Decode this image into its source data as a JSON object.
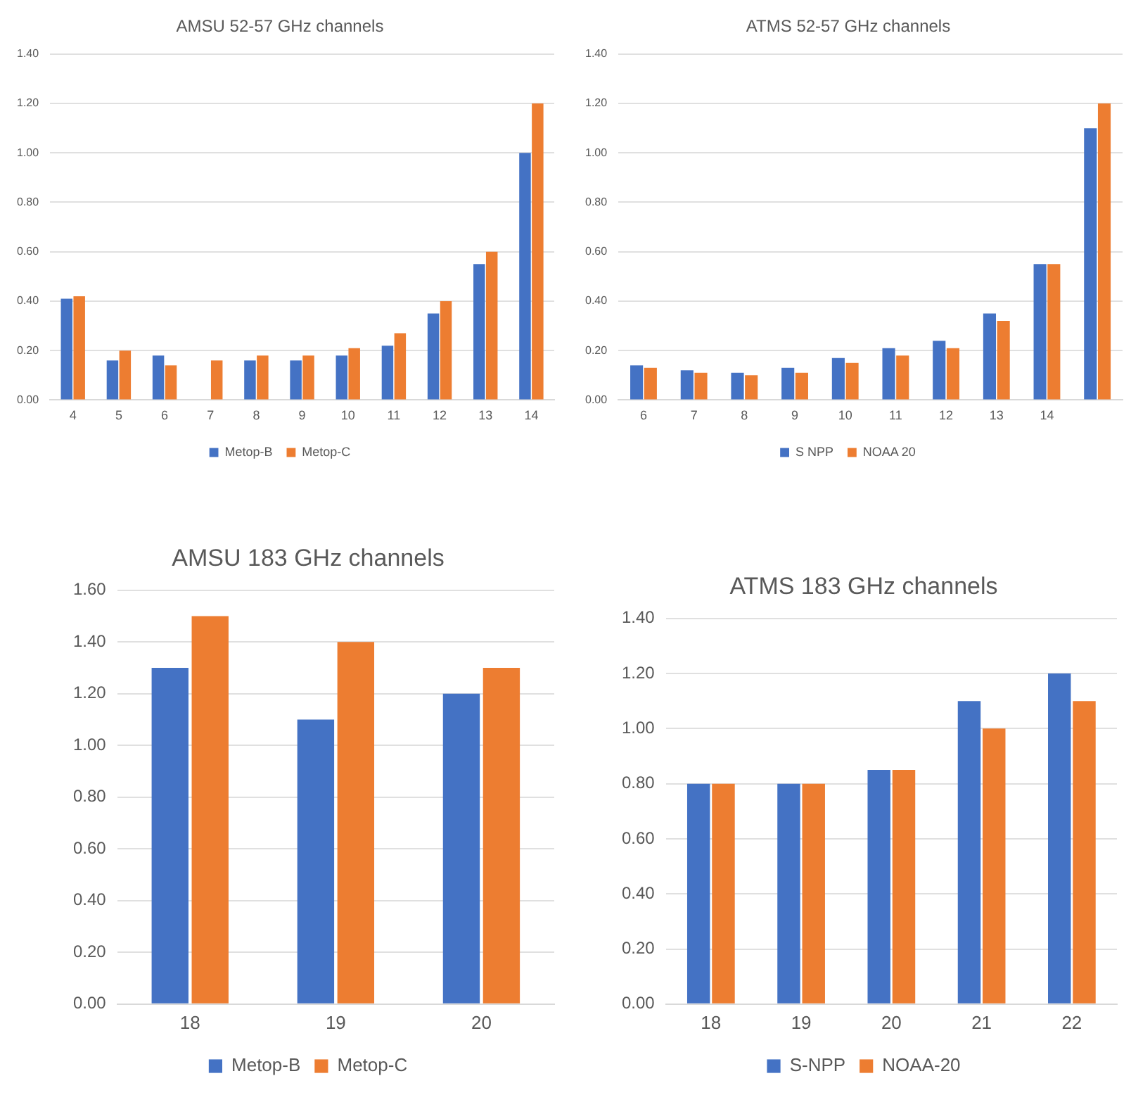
{
  "chart_data": [
    {
      "type": "bar",
      "title": "AMSU 52-57 GHz channels",
      "categories": [
        "4",
        "5",
        "6",
        "7",
        "8",
        "9",
        "10",
        "11",
        "12",
        "13",
        "14"
      ],
      "series": [
        {
          "name": "Metop-B",
          "color": "#4472c4",
          "values": [
            0.41,
            0.16,
            0.18,
            null,
            0.16,
            0.16,
            0.18,
            0.22,
            0.35,
            0.55,
            1.0
          ]
        },
        {
          "name": "Metop-C",
          "color": "#ed7d31",
          "values": [
            0.42,
            0.2,
            0.14,
            0.16,
            0.18,
            0.18,
            0.21,
            0.27,
            0.4,
            0.6,
            1.2
          ]
        }
      ],
      "ylim": [
        0,
        1.4
      ],
      "yticks": [
        {
          "value": 0,
          "label": "0.00"
        },
        {
          "value": 0.2,
          "label": "0.20"
        },
        {
          "value": 0.4,
          "label": "0.40"
        },
        {
          "value": 0.6,
          "label": "0.60"
        },
        {
          "value": 0.8,
          "label": "0.80"
        },
        {
          "value": 1,
          "label": "1.00"
        },
        {
          "value": 1.2,
          "label": "1.20"
        },
        {
          "value": 1.4,
          "label": "1.40"
        }
      ],
      "grid": "y",
      "legend": "bottom"
    },
    {
      "type": "bar",
      "title": "ATMS 52-57 GHz channels",
      "categories": [
        "6",
        "7",
        "8",
        "9",
        "10",
        "11",
        "12",
        "13",
        "14",
        null
      ],
      "series": [
        {
          "name": "S NPP",
          "color": "#4472c4",
          "values": [
            0.14,
            0.12,
            0.11,
            0.13,
            0.17,
            0.21,
            0.24,
            0.35,
            0.55,
            1.1
          ]
        },
        {
          "name": "NOAA 20",
          "color": "#ed7d31",
          "values": [
            0.13,
            0.11,
            0.1,
            0.11,
            0.15,
            0.18,
            0.21,
            0.32,
            0.55,
            1.2
          ]
        }
      ],
      "ylim": [
        0,
        1.4
      ],
      "yticks": [
        {
          "value": 0,
          "label": "0.00"
        },
        {
          "value": 0.2,
          "label": "0.20"
        },
        {
          "value": 0.4,
          "label": "0.40"
        },
        {
          "value": 0.6,
          "label": "0.60"
        },
        {
          "value": 0.8,
          "label": "0.80"
        },
        {
          "value": 1,
          "label": "1.00"
        },
        {
          "value": 1.2,
          "label": "1.20"
        },
        {
          "value": 1.4,
          "label": "1.40"
        }
      ],
      "grid": "y",
      "legend": "bottom"
    },
    {
      "type": "bar",
      "title": "AMSU 183 GHz channels",
      "categories": [
        "18",
        "19",
        "20"
      ],
      "series": [
        {
          "name": "Metop-B",
          "color": "#4472c4",
          "values": [
            1.3,
            1.1,
            1.2
          ]
        },
        {
          "name": "Metop-C",
          "color": "#ed7d31",
          "values": [
            1.5,
            1.4,
            1.3
          ]
        }
      ],
      "ylim": [
        0,
        1.6
      ],
      "yticks": [
        {
          "value": 0,
          "label": "0.00"
        },
        {
          "value": 0.2,
          "label": "0.20"
        },
        {
          "value": 0.4,
          "label": "0.40"
        },
        {
          "value": 0.6,
          "label": "0.60"
        },
        {
          "value": 0.8,
          "label": "0.80"
        },
        {
          "value": 1,
          "label": "1.00"
        },
        {
          "value": 1.2,
          "label": "1.20"
        },
        {
          "value": 1.4,
          "label": "1.40"
        },
        {
          "value": 1.6,
          "label": "1.60"
        }
      ],
      "grid": "y",
      "legend": "bottom"
    },
    {
      "type": "bar",
      "title": "ATMS 183 GHz channels",
      "categories": [
        "18",
        "19",
        "20",
        "21",
        "22"
      ],
      "series": [
        {
          "name": "S-NPP",
          "color": "#4472c4",
          "values": [
            0.8,
            0.8,
            0.85,
            1.1,
            1.2
          ]
        },
        {
          "name": "NOAA-20",
          "color": "#ed7d31",
          "values": [
            0.8,
            0.8,
            0.85,
            1.0,
            1.1
          ]
        }
      ],
      "ylim": [
        0,
        1.4
      ],
      "yticks": [
        {
          "value": 0,
          "label": "0.00"
        },
        {
          "value": 0.2,
          "label": "0.20"
        },
        {
          "value": 0.4,
          "label": "0.40"
        },
        {
          "value": 0.6,
          "label": "0.60"
        },
        {
          "value": 0.8,
          "label": "0.80"
        },
        {
          "value": 1,
          "label": "1.00"
        },
        {
          "value": 1.2,
          "label": "1.20"
        },
        {
          "value": 1.4,
          "label": "1.40"
        }
      ],
      "grid": "y",
      "legend": "bottom"
    }
  ]
}
